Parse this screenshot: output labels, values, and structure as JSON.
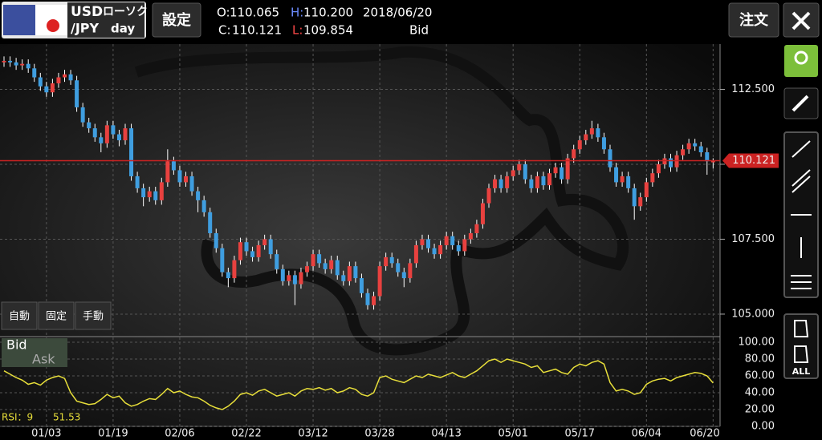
{
  "header": {
    "pair_base": "USD",
    "chart_kind": "ローソク",
    "pair_quote": "/JPY",
    "period": "day",
    "settings": "設定",
    "ohlc_labels": [
      "O:",
      "H:",
      "C:",
      "L:"
    ],
    "ohlc_values": [
      "110.065",
      "110.200",
      "110.121",
      "109.854"
    ],
    "date": "2018/06/20",
    "side": "Bid",
    "order": "注文"
  },
  "scale_buttons": [
    "自動",
    "固定",
    "手動"
  ],
  "rsi_legend": {
    "bid": "Bid",
    "ask": "Ask",
    "label": "RSI：9",
    "value": "51.53"
  },
  "toolbar": {
    "all": "ALL"
  },
  "chart_data": {
    "type": "candlestick",
    "up_color": "#e8413f",
    "down_color": "#3f9ee0",
    "current": {
      "value": 110.121,
      "label": "110.121"
    },
    "ylim": [
      104.25,
      114.01
    ],
    "yticks": [
      {
        "value": 105,
        "label": "105.000"
      },
      {
        "value": 107.5,
        "label": "107.500"
      },
      {
        "value": 110,
        "label": "110.000"
      },
      {
        "value": 112.5,
        "label": "112.500"
      }
    ],
    "categories": [
      null,
      null,
      null,
      null,
      null,
      null,
      null,
      "01/03",
      null,
      null,
      null,
      null,
      null,
      null,
      null,
      null,
      null,
      null,
      "01/19",
      null,
      null,
      null,
      null,
      null,
      null,
      null,
      null,
      null,
      null,
      "02/06",
      null,
      null,
      null,
      null,
      null,
      null,
      null,
      null,
      null,
      null,
      "02/22",
      null,
      null,
      null,
      null,
      null,
      null,
      null,
      null,
      null,
      null,
      "03/12",
      null,
      null,
      null,
      null,
      null,
      null,
      null,
      null,
      null,
      null,
      "03/28",
      null,
      null,
      null,
      null,
      null,
      null,
      null,
      null,
      null,
      null,
      "04/13",
      null,
      null,
      null,
      null,
      null,
      null,
      null,
      null,
      null,
      null,
      "05/01",
      null,
      null,
      null,
      null,
      null,
      null,
      null,
      null,
      null,
      null,
      "05/17",
      null,
      null,
      null,
      null,
      null,
      null,
      null,
      null,
      null,
      null,
      "06/04",
      null,
      null,
      null,
      null,
      null,
      null,
      null,
      null,
      null,
      null,
      "06/20"
    ],
    "candles": [
      [
        113.4,
        113.6,
        113.25,
        113.45
      ],
      [
        113.45,
        113.6,
        113.25,
        113.4
      ],
      [
        113.4,
        113.55,
        113.15,
        113.3
      ],
      [
        113.3,
        113.5,
        113.15,
        113.35
      ],
      [
        113.35,
        113.5,
        113.05,
        113.2
      ],
      [
        113.2,
        113.35,
        112.75,
        112.9
      ],
      [
        112.9,
        113.05,
        112.45,
        112.6
      ],
      [
        112.6,
        112.75,
        112.25,
        112.4
      ],
      [
        112.4,
        112.85,
        112.25,
        112.7
      ],
      [
        112.7,
        113.05,
        112.55,
        112.9
      ],
      [
        112.9,
        113.15,
        112.75,
        113.0
      ],
      [
        113.0,
        113.15,
        112.65,
        112.8
      ],
      [
        112.8,
        112.95,
        111.75,
        111.9
      ],
      [
        111.9,
        112.05,
        111.25,
        111.4
      ],
      [
        111.4,
        111.55,
        111.05,
        111.2
      ],
      [
        111.2,
        111.35,
        110.75,
        110.9
      ],
      [
        110.9,
        111.05,
        110.4,
        110.7
      ],
      [
        110.7,
        111.45,
        110.55,
        111.3
      ],
      [
        111.3,
        111.45,
        110.85,
        111.0
      ],
      [
        111.0,
        111.15,
        110.6,
        110.8
      ],
      [
        110.8,
        111.35,
        110.65,
        111.2
      ],
      [
        111.2,
        111.35,
        109.45,
        109.6
      ],
      [
        109.6,
        109.75,
        109.05,
        109.2
      ],
      [
        109.2,
        109.35,
        108.6,
        108.9
      ],
      [
        108.9,
        109.25,
        108.75,
        109.1
      ],
      [
        109.1,
        109.25,
        108.65,
        108.8
      ],
      [
        108.8,
        109.55,
        108.65,
        109.4
      ],
      [
        109.4,
        110.5,
        109.25,
        110.1
      ],
      [
        110.1,
        110.25,
        109.65,
        109.8
      ],
      [
        109.8,
        109.95,
        109.25,
        109.4
      ],
      [
        109.4,
        109.75,
        109.25,
        109.6
      ],
      [
        109.6,
        109.75,
        108.95,
        109.1
      ],
      [
        109.1,
        109.25,
        108.4,
        108.8
      ],
      [
        108.8,
        108.95,
        108.25,
        108.4
      ],
      [
        108.4,
        108.55,
        107.55,
        107.7
      ],
      [
        107.7,
        107.85,
        107.05,
        107.2
      ],
      [
        107.2,
        107.35,
        106.25,
        106.4
      ],
      [
        106.4,
        106.55,
        105.9,
        106.2
      ],
      [
        106.2,
        106.95,
        106.05,
        106.8
      ],
      [
        106.8,
        107.55,
        106.65,
        107.4
      ],
      [
        107.4,
        107.55,
        106.95,
        107.1
      ],
      [
        107.1,
        107.25,
        106.75,
        106.9
      ],
      [
        106.9,
        107.45,
        106.75,
        107.3
      ],
      [
        107.3,
        107.65,
        107.15,
        107.5
      ],
      [
        107.5,
        107.65,
        106.85,
        107.0
      ],
      [
        107.0,
        107.15,
        106.35,
        106.5
      ],
      [
        106.5,
        106.65,
        105.95,
        106.1
      ],
      [
        106.1,
        106.45,
        105.95,
        106.3
      ],
      [
        106.3,
        106.45,
        105.3,
        106.0
      ],
      [
        106.0,
        106.55,
        105.85,
        106.4
      ],
      [
        106.4,
        106.75,
        106.25,
        106.6
      ],
      [
        106.6,
        107.15,
        106.45,
        107.0
      ],
      [
        107.0,
        107.15,
        106.55,
        106.7
      ],
      [
        106.7,
        106.85,
        106.35,
        106.5
      ],
      [
        106.5,
        106.95,
        106.35,
        106.8
      ],
      [
        106.8,
        106.95,
        106.15,
        106.3
      ],
      [
        106.3,
        106.45,
        105.95,
        106.1
      ],
      [
        106.1,
        106.75,
        105.95,
        106.6
      ],
      [
        106.6,
        106.75,
        106.05,
        106.2
      ],
      [
        106.2,
        106.35,
        105.55,
        105.7
      ],
      [
        105.7,
        105.85,
        105.15,
        105.3
      ],
      [
        105.3,
        105.75,
        105.15,
        105.6
      ],
      [
        105.6,
        106.75,
        105.45,
        106.6
      ],
      [
        106.6,
        107.05,
        106.45,
        106.9
      ],
      [
        106.9,
        107.05,
        106.55,
        106.7
      ],
      [
        106.7,
        106.85,
        106.25,
        106.4
      ],
      [
        106.4,
        106.55,
        105.9,
        106.2
      ],
      [
        106.2,
        106.85,
        106.05,
        106.7
      ],
      [
        106.7,
        107.45,
        106.55,
        107.3
      ],
      [
        107.3,
        107.65,
        107.15,
        107.5
      ],
      [
        107.5,
        107.65,
        107.05,
        107.2
      ],
      [
        107.2,
        107.35,
        106.85,
        107.0
      ],
      [
        107.0,
        107.45,
        106.85,
        107.3
      ],
      [
        107.3,
        107.75,
        107.15,
        107.6
      ],
      [
        107.6,
        107.75,
        107.15,
        107.3
      ],
      [
        107.3,
        107.45,
        106.95,
        107.1
      ],
      [
        107.1,
        107.65,
        106.95,
        107.5
      ],
      [
        107.5,
        107.85,
        107.35,
        107.7
      ],
      [
        107.7,
        108.15,
        107.55,
        108.0
      ],
      [
        108.0,
        108.85,
        107.85,
        108.7
      ],
      [
        108.7,
        109.35,
        108.55,
        109.2
      ],
      [
        109.2,
        109.65,
        109.05,
        109.5
      ],
      [
        109.5,
        109.65,
        109.05,
        109.2
      ],
      [
        109.2,
        109.75,
        109.05,
        109.6
      ],
      [
        109.6,
        109.95,
        109.45,
        109.8
      ],
      [
        109.8,
        110.15,
        109.65,
        110.0
      ],
      [
        110.0,
        110.15,
        109.35,
        109.5
      ],
      [
        109.5,
        109.65,
        109.05,
        109.2
      ],
      [
        109.2,
        109.75,
        109.05,
        109.6
      ],
      [
        109.6,
        109.75,
        109.15,
        109.3
      ],
      [
        109.3,
        109.85,
        109.15,
        109.7
      ],
      [
        109.7,
        110.05,
        109.55,
        109.9
      ],
      [
        109.9,
        110.05,
        109.35,
        109.5
      ],
      [
        109.5,
        110.35,
        109.35,
        110.2
      ],
      [
        110.2,
        110.65,
        110.05,
        110.5
      ],
      [
        110.5,
        110.95,
        110.35,
        110.8
      ],
      [
        110.8,
        111.15,
        110.65,
        111.0
      ],
      [
        111.0,
        111.45,
        110.85,
        111.2
      ],
      [
        111.2,
        111.35,
        110.75,
        110.9
      ],
      [
        110.9,
        111.05,
        110.35,
        110.5
      ],
      [
        110.5,
        110.65,
        109.75,
        109.9
      ],
      [
        109.9,
        110.05,
        109.25,
        109.4
      ],
      [
        109.4,
        109.75,
        109.25,
        109.6
      ],
      [
        109.6,
        109.75,
        109.05,
        109.2
      ],
      [
        109.2,
        109.35,
        108.15,
        108.6
      ],
      [
        108.6,
        109.05,
        108.45,
        108.9
      ],
      [
        108.9,
        109.55,
        108.75,
        109.4
      ],
      [
        109.4,
        109.85,
        109.25,
        109.7
      ],
      [
        109.7,
        110.15,
        109.55,
        110.0
      ],
      [
        110.0,
        110.35,
        109.85,
        110.2
      ],
      [
        110.2,
        110.35,
        109.75,
        109.9
      ],
      [
        109.9,
        110.45,
        109.75,
        110.3
      ],
      [
        110.3,
        110.65,
        110.15,
        110.5
      ],
      [
        110.5,
        110.85,
        110.35,
        110.7
      ],
      [
        110.7,
        110.85,
        110.45,
        110.6
      ],
      [
        110.6,
        110.75,
        110.25,
        110.4
      ],
      [
        110.4,
        110.55,
        109.65,
        110.1
      ],
      [
        110.065,
        110.2,
        109.854,
        110.121
      ]
    ],
    "rsi": {
      "color": "#e8df3a",
      "ylim": [
        0,
        100
      ],
      "yticks": [
        {
          "value": 0,
          "label": "0.00"
        },
        {
          "value": 20,
          "label": "20.00"
        },
        {
          "value": 40,
          "label": "40.00"
        },
        {
          "value": 60,
          "label": "60.00"
        },
        {
          "value": 80,
          "label": "80.00"
        },
        {
          "value": 100,
          "label": "100.00"
        }
      ],
      "values": [
        66,
        62,
        58,
        55,
        50,
        52,
        49,
        55,
        58,
        60,
        57,
        40,
        30,
        28,
        26,
        27,
        32,
        38,
        34,
        36,
        28,
        24,
        26,
        30,
        33,
        32,
        38,
        45,
        40,
        42,
        38,
        35,
        34,
        30,
        25,
        22,
        20,
        24,
        30,
        38,
        40,
        37,
        42,
        44,
        40,
        36,
        38,
        40,
        36,
        42,
        45,
        44,
        46,
        43,
        45,
        40,
        42,
        46,
        44,
        38,
        36,
        40,
        58,
        60,
        56,
        54,
        52,
        56,
        60,
        58,
        62,
        60,
        58,
        61,
        64,
        60,
        58,
        62,
        66,
        72,
        78,
        80,
        76,
        80,
        78,
        76,
        74,
        70,
        72,
        64,
        66,
        68,
        64,
        62,
        70,
        74,
        72,
        76,
        78,
        74,
        52,
        42,
        44,
        42,
        38,
        40,
        50,
        54,
        56,
        57,
        54,
        58,
        60,
        62,
        64,
        63,
        60,
        51.53
      ]
    }
  }
}
